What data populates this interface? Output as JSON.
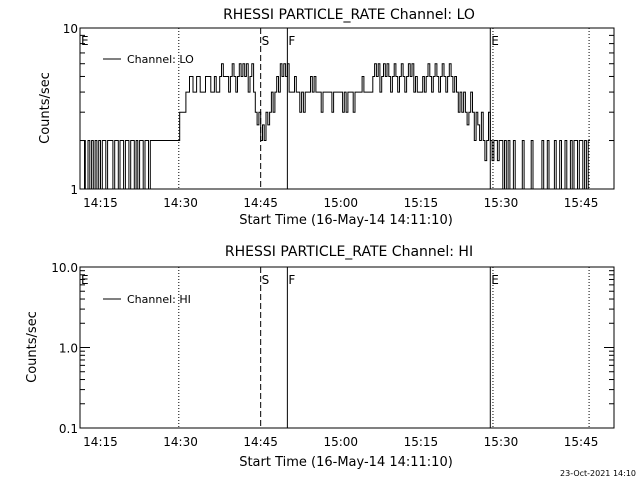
{
  "footer_date": "23-Oct-2021 14:10",
  "chart_data": [
    {
      "type": "line",
      "title": "RHESSI PARTICLE_RATE Channel: LO",
      "xlabel": "Start Time (16-May-14 14:11:10)",
      "ylabel": "Counts/sec",
      "yscale": "log",
      "ylim": [
        1,
        10
      ],
      "y_ticks": [
        "1",
        "10"
      ],
      "xlim": [
        "14:11:10",
        "15:51:10"
      ],
      "x_ticks": [
        "14:15",
        "14:30",
        "14:45",
        "15:00",
        "15:15",
        "15:30",
        "15:45"
      ],
      "legend": {
        "label": "Channel: LO",
        "placement": "top-left"
      },
      "markers": [
        {
          "label": "E",
          "time": "14:11:10",
          "style": "dotted"
        },
        {
          "label": "",
          "time": "14:29:40",
          "style": "dotted"
        },
        {
          "label": "S",
          "time": "14:45:00",
          "style": "dashed"
        },
        {
          "label": "F",
          "time": "14:50:00",
          "style": "solid"
        },
        {
          "label": "E",
          "time": "15:28:00",
          "style": "solid"
        },
        {
          "label": "",
          "time": "15:28:30",
          "style": "dotted"
        },
        {
          "label": "",
          "time": "15:46:30",
          "style": "dotted"
        }
      ],
      "series": [
        {
          "values": [
            [
              "14:11:10",
              1
            ],
            [
              "14:12:00",
              2
            ],
            [
              "14:12:10",
              1
            ],
            [
              "14:12:40",
              2
            ],
            [
              "14:13:00",
              1
            ],
            [
              "14:13:20",
              2
            ],
            [
              "14:13:40",
              1
            ],
            [
              "14:14:00",
              2
            ],
            [
              "14:14:20",
              1
            ],
            [
              "14:14:40",
              2
            ],
            [
              "14:15:00",
              1
            ],
            [
              "14:15:20",
              2
            ],
            [
              "14:16:00",
              1
            ],
            [
              "14:16:20",
              2
            ],
            [
              "14:17:00",
              2
            ],
            [
              "14:17:20",
              1
            ],
            [
              "14:17:40",
              2
            ],
            [
              "14:18:20",
              1
            ],
            [
              "14:18:40",
              2
            ],
            [
              "14:19:20",
              1
            ],
            [
              "14:19:40",
              2
            ],
            [
              "14:20:20",
              1
            ],
            [
              "14:20:40",
              2
            ],
            [
              "14:21:20",
              1
            ],
            [
              "14:21:40",
              2
            ],
            [
              "14:22:00",
              1
            ],
            [
              "14:22:20",
              2
            ],
            [
              "14:23:00",
              1
            ],
            [
              "14:23:20",
              2
            ],
            [
              "14:24:00",
              1
            ],
            [
              "14:24:20",
              2
            ],
            [
              "14:25:00",
              2
            ],
            [
              "14:29:30",
              2
            ],
            [
              "14:29:50",
              3
            ],
            [
              "14:30:30",
              3
            ],
            [
              "14:31:00",
              4
            ],
            [
              "14:31:40",
              5
            ],
            [
              "14:32:20",
              4
            ],
            [
              "14:33:00",
              5
            ],
            [
              "14:33:40",
              4
            ],
            [
              "14:34:20",
              4
            ],
            [
              "14:34:40",
              5
            ],
            [
              "14:35:20",
              5
            ],
            [
              "14:35:40",
              4
            ],
            [
              "14:36:20",
              5
            ],
            [
              "14:36:40",
              4
            ],
            [
              "14:37:00",
              4
            ],
            [
              "14:37:20",
              5
            ],
            [
              "14:37:40",
              6
            ],
            [
              "14:38:00",
              5
            ],
            [
              "14:38:40",
              5
            ],
            [
              "14:39:00",
              4
            ],
            [
              "14:39:20",
              5
            ],
            [
              "14:39:40",
              6
            ],
            [
              "14:40:00",
              5
            ],
            [
              "14:40:20",
              4
            ],
            [
              "14:40:40",
              5
            ],
            [
              "14:41:00",
              6
            ],
            [
              "14:41:20",
              5
            ],
            [
              "14:41:40",
              6
            ],
            [
              "14:42:00",
              5
            ],
            [
              "14:42:20",
              6
            ],
            [
              "14:42:40",
              4
            ],
            [
              "14:43:00",
              5
            ],
            [
              "14:43:20",
              6
            ],
            [
              "14:43:40",
              4
            ],
            [
              "14:44:00",
              3
            ],
            [
              "14:44:20",
              2.5
            ],
            [
              "14:44:40",
              3
            ],
            [
              "14:45:00",
              2
            ],
            [
              "14:45:20",
              2.5
            ],
            [
              "14:45:40",
              2
            ],
            [
              "14:46:00",
              3
            ],
            [
              "14:46:20",
              2.5
            ],
            [
              "14:46:40",
              3
            ],
            [
              "14:47:00",
              4
            ],
            [
              "14:47:20",
              3
            ],
            [
              "14:47:40",
              4
            ],
            [
              "14:48:00",
              5
            ],
            [
              "14:48:20",
              4
            ],
            [
              "14:48:40",
              6
            ],
            [
              "14:49:00",
              5
            ],
            [
              "14:49:20",
              6
            ],
            [
              "14:49:40",
              5
            ],
            [
              "14:50:00",
              6
            ],
            [
              "14:50:20",
              4
            ],
            [
              "14:51:00",
              4
            ],
            [
              "14:51:20",
              5
            ],
            [
              "14:51:40",
              4
            ],
            [
              "14:52:00",
              4
            ],
            [
              "14:52:20",
              3
            ],
            [
              "14:52:40",
              4
            ],
            [
              "14:53:00",
              3
            ],
            [
              "14:53:20",
              4
            ],
            [
              "14:54:00",
              4
            ],
            [
              "14:54:20",
              5
            ],
            [
              "14:54:40",
              4
            ],
            [
              "14:55:00",
              5
            ],
            [
              "14:55:20",
              4
            ],
            [
              "14:56:00",
              4
            ],
            [
              "14:56:20",
              3
            ],
            [
              "14:56:40",
              4
            ],
            [
              "14:58:00",
              4
            ],
            [
              "14:58:20",
              3
            ],
            [
              "14:58:40",
              4
            ],
            [
              "15:00:00",
              4
            ],
            [
              "15:00:20",
              3
            ],
            [
              "15:00:40",
              4
            ],
            [
              "15:01:00",
              3
            ],
            [
              "15:01:20",
              4
            ],
            [
              "15:02:00",
              4
            ],
            [
              "15:02:20",
              3
            ],
            [
              "15:02:40",
              4
            ],
            [
              "15:03:40",
              4
            ],
            [
              "15:04:00",
              5
            ],
            [
              "15:04:20",
              4
            ],
            [
              "15:05:40",
              4
            ],
            [
              "15:06:00",
              5
            ],
            [
              "15:06:20",
              6
            ],
            [
              "15:06:40",
              5
            ],
            [
              "15:07:00",
              6
            ],
            [
              "15:07:20",
              4
            ],
            [
              "15:07:40",
              5
            ],
            [
              "15:08:00",
              6
            ],
            [
              "15:08:20",
              5
            ],
            [
              "15:08:40",
              6
            ],
            [
              "15:09:00",
              5
            ],
            [
              "15:09:20",
              4
            ],
            [
              "15:09:40",
              5
            ],
            [
              "15:10:00",
              6
            ],
            [
              "15:10:20",
              5
            ],
            [
              "15:10:40",
              4
            ],
            [
              "15:11:00",
              5
            ],
            [
              "15:11:20",
              6
            ],
            [
              "15:11:40",
              5
            ],
            [
              "15:12:00",
              4
            ],
            [
              "15:12:20",
              5
            ],
            [
              "15:12:40",
              6
            ],
            [
              "15:13:00",
              5
            ],
            [
              "15:13:20",
              6
            ],
            [
              "15:13:40",
              4
            ],
            [
              "15:14:00",
              5
            ],
            [
              "15:14:20",
              4
            ],
            [
              "15:15:00",
              4
            ],
            [
              "15:15:20",
              5
            ],
            [
              "15:15:40",
              4
            ],
            [
              "15:16:00",
              5
            ],
            [
              "15:16:20",
              6
            ],
            [
              "15:16:40",
              5
            ],
            [
              "15:17:00",
              4
            ],
            [
              "15:17:20",
              5
            ],
            [
              "15:17:40",
              6
            ],
            [
              "15:18:00",
              5
            ],
            [
              "15:18:20",
              4
            ],
            [
              "15:18:40",
              5
            ],
            [
              "15:19:00",
              6
            ],
            [
              "15:19:20",
              5
            ],
            [
              "15:19:40",
              4
            ],
            [
              "15:20:00",
              5
            ],
            [
              "15:20:20",
              6
            ],
            [
              "15:20:40",
              5
            ],
            [
              "15:21:00",
              4
            ],
            [
              "15:21:20",
              5
            ],
            [
              "15:21:40",
              4
            ],
            [
              "15:22:00",
              3
            ],
            [
              "15:22:20",
              4
            ],
            [
              "15:22:40",
              3
            ],
            [
              "15:23:00",
              4
            ],
            [
              "15:23:20",
              3
            ],
            [
              "15:23:40",
              2.5
            ],
            [
              "15:24:00",
              3
            ],
            [
              "15:24:20",
              4
            ],
            [
              "15:24:40",
              3
            ],
            [
              "15:25:00",
              2
            ],
            [
              "15:25:20",
              3
            ],
            [
              "15:25:40",
              2.5
            ],
            [
              "15:26:00",
              2
            ],
            [
              "15:26:20",
              3
            ],
            [
              "15:26:40",
              2
            ],
            [
              "15:27:00",
              1.5
            ],
            [
              "15:27:20",
              2
            ],
            [
              "15:27:40",
              3
            ],
            [
              "15:28:00",
              2
            ],
            [
              "15:28:20",
              1.5
            ],
            [
              "15:28:40",
              2
            ],
            [
              "15:29:00",
              2
            ],
            [
              "15:29:20",
              1.5
            ],
            [
              "15:29:40",
              2
            ],
            [
              "15:30:00",
              2
            ],
            [
              "15:30:20",
              1
            ],
            [
              "15:30:40",
              2
            ],
            [
              "15:31:00",
              1
            ],
            [
              "15:31:20",
              2
            ],
            [
              "15:31:40",
              1
            ],
            [
              "15:32:00",
              1
            ],
            [
              "15:32:20",
              2
            ],
            [
              "15:32:40",
              1
            ],
            [
              "15:33:40",
              1
            ],
            [
              "15:34:00",
              2
            ],
            [
              "15:34:20",
              1
            ],
            [
              "15:35:20",
              1
            ],
            [
              "15:35:40",
              2
            ],
            [
              "15:36:00",
              1
            ],
            [
              "15:37:20",
              1
            ],
            [
              "15:37:40",
              2
            ],
            [
              "15:38:00",
              1
            ],
            [
              "15:38:40",
              2
            ],
            [
              "15:39:00",
              1
            ],
            [
              "15:39:40",
              1
            ],
            [
              "15:40:00",
              2
            ],
            [
              "15:40:20",
              1
            ],
            [
              "15:41:00",
              2
            ],
            [
              "15:41:20",
              1
            ],
            [
              "15:42:00",
              2
            ],
            [
              "15:42:20",
              1
            ],
            [
              "15:43:00",
              2
            ],
            [
              "15:43:20",
              1
            ],
            [
              "15:43:40",
              2
            ],
            [
              "15:44:00",
              2
            ],
            [
              "15:44:20",
              1
            ],
            [
              "15:44:40",
              2
            ],
            [
              "15:45:20",
              1
            ],
            [
              "15:45:40",
              2
            ],
            [
              "15:46:00",
              1
            ],
            [
              "15:46:20",
              2
            ],
            [
              "15:46:40",
              2
            ]
          ]
        }
      ]
    },
    {
      "type": "line",
      "title": "RHESSI PARTICLE_RATE Channel: HI",
      "xlabel": "Start Time (16-May-14 14:11:10)",
      "ylabel": "Counts/sec",
      "yscale": "log",
      "ylim": [
        0.1,
        10
      ],
      "y_ticks": [
        "0.1",
        "1.0",
        "10.0"
      ],
      "xlim": [
        "14:11:10",
        "15:51:10"
      ],
      "x_ticks": [
        "14:15",
        "14:30",
        "14:45",
        "15:00",
        "15:15",
        "15:30",
        "15:45"
      ],
      "legend": {
        "label": "Channel: HI",
        "placement": "top-left"
      },
      "markers": [
        {
          "label": "E",
          "time": "14:11:10",
          "style": "dotted"
        },
        {
          "label": "",
          "time": "14:29:40",
          "style": "dotted"
        },
        {
          "label": "S",
          "time": "14:45:00",
          "style": "dashed"
        },
        {
          "label": "F",
          "time": "14:50:00",
          "style": "solid"
        },
        {
          "label": "E",
          "time": "15:28:00",
          "style": "solid"
        },
        {
          "label": "",
          "time": "15:28:30",
          "style": "dotted"
        },
        {
          "label": "",
          "time": "15:46:30",
          "style": "dotted"
        }
      ],
      "series": [
        {
          "values": []
        }
      ]
    }
  ]
}
